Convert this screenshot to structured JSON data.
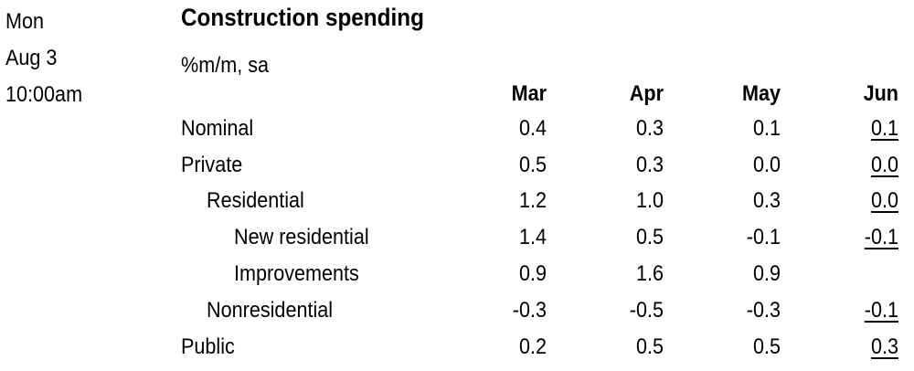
{
  "release": {
    "day": "Mon",
    "date": "Aug 3",
    "time": "10:00am"
  },
  "table": {
    "title": "Construction spending",
    "subtitle": "%m/m, sa",
    "columns": [
      "Mar",
      "Apr",
      "May",
      "Jun"
    ],
    "rows": [
      {
        "label": "Nominal",
        "values": [
          "0.4",
          "0.3",
          "0.1",
          "0.1"
        ]
      },
      {
        "label": "Private",
        "values": [
          "0.5",
          "0.3",
          "0.0",
          "0.0"
        ]
      },
      {
        "label": "Residential",
        "values": [
          "1.2",
          "1.0",
          "0.3",
          "0.0"
        ]
      },
      {
        "label": "New residential",
        "values": [
          "1.4",
          "0.5",
          "-0.1",
          "-0.1"
        ]
      },
      {
        "label": "Improvements",
        "values": [
          "0.9",
          "1.6",
          "0.9",
          ""
        ]
      },
      {
        "label": "Nonresidential",
        "values": [
          "-0.3",
          "-0.5",
          "-0.3",
          "-0.1"
        ]
      },
      {
        "label": "Public",
        "values": [
          "0.2",
          "0.5",
          "0.5",
          "0.3"
        ]
      }
    ]
  }
}
